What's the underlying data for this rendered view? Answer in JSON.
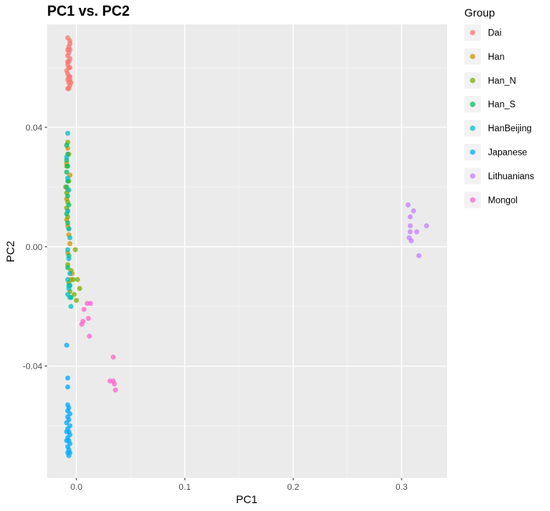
{
  "chart_data": {
    "type": "scatter",
    "title": "PC1 vs. PC2",
    "xlabel": "PC1",
    "ylabel": "PC2",
    "xlim": [
      -0.027,
      0.342
    ],
    "ylim": [
      -0.0775,
      0.0745
    ],
    "xticks": [
      0.0,
      0.1,
      0.2,
      0.3
    ],
    "xtick_labels": [
      "0.0",
      "0.1",
      "0.2",
      "0.3"
    ],
    "yticks": [
      -0.04,
      0.0,
      0.04
    ],
    "ytick_labels": [
      "-0.04",
      "0.00",
      "0.04"
    ],
    "grid": true,
    "legend": {
      "title": "Group",
      "position": "right"
    },
    "series": [
      {
        "name": "Dai",
        "color": "#F8766D",
        "points": [
          [
            -0.008,
            0.07
          ],
          [
            -0.006,
            0.069
          ],
          [
            -0.007,
            0.067
          ],
          [
            -0.008,
            0.066
          ],
          [
            -0.006,
            0.066
          ],
          [
            -0.007,
            0.065
          ],
          [
            -0.008,
            0.064
          ],
          [
            -0.006,
            0.063
          ],
          [
            -0.007,
            0.062
          ],
          [
            -0.008,
            0.061
          ],
          [
            -0.006,
            0.06
          ],
          [
            -0.007,
            0.06
          ],
          [
            -0.009,
            0.059
          ],
          [
            -0.008,
            0.058
          ],
          [
            -0.006,
            0.057
          ],
          [
            -0.007,
            0.057
          ],
          [
            -0.006,
            0.056
          ],
          [
            -0.008,
            0.056
          ],
          [
            -0.005,
            0.055
          ],
          [
            -0.007,
            0.055
          ],
          [
            -0.006,
            0.054
          ],
          [
            -0.007,
            0.053
          ],
          [
            -0.008,
            0.053
          ],
          [
            -0.006,
            0.068
          ],
          [
            -0.008,
            0.062
          ]
        ]
      },
      {
        "name": "Han",
        "color": "#CD9600",
        "points": [
          [
            -0.008,
            0.033
          ],
          [
            -0.007,
            0.031
          ],
          [
            -0.009,
            0.028
          ],
          [
            -0.006,
            0.024
          ],
          [
            -0.01,
            0.02
          ],
          [
            -0.008,
            0.019
          ],
          [
            -0.009,
            0.016
          ],
          [
            -0.008,
            0.012
          ],
          [
            -0.009,
            0.009
          ],
          [
            -0.008,
            0.007
          ],
          [
            -0.007,
            0.004
          ],
          [
            -0.006,
            0.001
          ],
          [
            -0.008,
            -0.002
          ],
          [
            -0.004,
            -0.009
          ],
          [
            -0.005,
            -0.011
          ]
        ]
      },
      {
        "name": "Han_N",
        "color": "#7CAE00",
        "points": [
          [
            -0.008,
            0.035
          ],
          [
            -0.009,
            0.027
          ],
          [
            -0.007,
            0.022
          ],
          [
            -0.009,
            0.018
          ],
          [
            -0.008,
            0.015
          ],
          [
            -0.009,
            0.013
          ],
          [
            -0.008,
            0.01
          ],
          [
            -0.007,
            0.006
          ],
          [
            -0.001,
            -0.001
          ],
          [
            -0.008,
            -0.006
          ],
          [
            -0.005,
            -0.008
          ],
          [
            -0.003,
            -0.011
          ],
          [
            0.001,
            -0.011
          ],
          [
            0.003,
            -0.014
          ],
          [
            -0.002,
            -0.016
          ],
          [
            0.0,
            -0.018
          ],
          [
            -0.007,
            -0.012
          ],
          [
            -0.006,
            -0.015
          ]
        ]
      },
      {
        "name": "Han_S",
        "color": "#00BE67",
        "points": [
          [
            -0.009,
            0.034
          ],
          [
            -0.008,
            0.031
          ],
          [
            -0.009,
            0.029
          ],
          [
            -0.008,
            0.027
          ],
          [
            -0.009,
            0.025
          ],
          [
            -0.008,
            0.022
          ],
          [
            -0.009,
            0.02
          ],
          [
            -0.008,
            0.017
          ],
          [
            -0.007,
            0.014
          ],
          [
            -0.009,
            0.011
          ],
          [
            -0.008,
            0.008
          ],
          [
            -0.007,
            -0.003
          ],
          [
            -0.008,
            -0.007
          ],
          [
            -0.006,
            -0.013
          ],
          [
            -0.005,
            -0.017
          ]
        ]
      },
      {
        "name": "HanBeijing",
        "color": "#00BFC4",
        "points": [
          [
            -0.008,
            0.038
          ],
          [
            -0.009,
            0.03
          ],
          [
            -0.008,
            0.023
          ],
          [
            -0.007,
            0.019
          ],
          [
            -0.008,
            0.012
          ],
          [
            -0.007,
            0.006
          ],
          [
            -0.006,
            0.003
          ],
          [
            -0.008,
            -0.001
          ],
          [
            -0.007,
            -0.004
          ],
          [
            -0.006,
            -0.009
          ],
          [
            -0.008,
            -0.011
          ],
          [
            -0.007,
            -0.014
          ],
          [
            -0.008,
            -0.016
          ],
          [
            -0.006,
            -0.017
          ],
          [
            -0.005,
            -0.02
          ],
          [
            -0.007,
            -0.013
          ]
        ]
      },
      {
        "name": "Japanese",
        "color": "#00A9FF",
        "points": [
          [
            -0.009,
            -0.033
          ],
          [
            -0.008,
            -0.044
          ],
          [
            -0.008,
            -0.047
          ],
          [
            -0.008,
            -0.053
          ],
          [
            -0.007,
            -0.054
          ],
          [
            -0.008,
            -0.055
          ],
          [
            -0.006,
            -0.056
          ],
          [
            -0.008,
            -0.057
          ],
          [
            -0.007,
            -0.058
          ],
          [
            -0.009,
            -0.059
          ],
          [
            -0.006,
            -0.06
          ],
          [
            -0.008,
            -0.061
          ],
          [
            -0.007,
            -0.062
          ],
          [
            -0.009,
            -0.062
          ],
          [
            -0.006,
            -0.063
          ],
          [
            -0.008,
            -0.064
          ],
          [
            -0.007,
            -0.065
          ],
          [
            -0.006,
            -0.066
          ],
          [
            -0.008,
            -0.067
          ],
          [
            -0.007,
            -0.068
          ],
          [
            -0.008,
            -0.069
          ],
          [
            -0.007,
            -0.07
          ],
          [
            -0.006,
            -0.069
          ],
          [
            -0.009,
            -0.065
          ]
        ]
      },
      {
        "name": "Lithuanians",
        "color": "#C77CFF",
        "points": [
          [
            0.306,
            0.014
          ],
          [
            0.311,
            0.012
          ],
          [
            0.308,
            0.01
          ],
          [
            0.323,
            0.007
          ],
          [
            0.308,
            0.007
          ],
          [
            0.314,
            0.005
          ],
          [
            0.308,
            0.005
          ],
          [
            0.307,
            0.003
          ],
          [
            0.309,
            0.002
          ],
          [
            0.316,
            -0.003
          ]
        ]
      },
      {
        "name": "Mongol",
        "color": "#FF61CC",
        "points": [
          [
            0.013,
            -0.019
          ],
          [
            0.01,
            -0.019
          ],
          [
            0.007,
            -0.021
          ],
          [
            0.011,
            -0.024
          ],
          [
            0.006,
            -0.025
          ],
          [
            0.005,
            -0.026
          ],
          [
            0.012,
            -0.03
          ],
          [
            0.034,
            -0.037
          ],
          [
            0.031,
            -0.045
          ],
          [
            0.034,
            -0.045
          ],
          [
            0.035,
            -0.046
          ],
          [
            0.036,
            -0.048
          ]
        ]
      }
    ]
  }
}
